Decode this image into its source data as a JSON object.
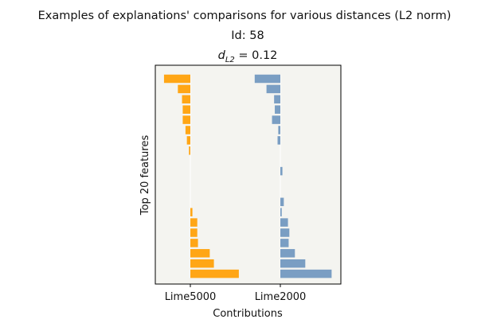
{
  "chart_data": {
    "type": "bar",
    "orientation": "horizontal",
    "title_lines": {
      "main": "Examples of explanations' comparisons for various distances (L2 norm)",
      "id_line": "Id: 58",
      "distance_symbol": "d",
      "distance_subscript": "L2",
      "distance_value": " = 0.12"
    },
    "xlabel": "Contributions",
    "ylabel": "Top 20 features",
    "background": "#f4f4f0",
    "grid": false,
    "legend": "none",
    "x_tick_labels": [
      "Lime5000",
      "Lime2000"
    ],
    "feature_count": 20,
    "series": [
      {
        "name": "Lime5000",
        "color": "#ffa616",
        "values": [
          -0.38,
          -0.18,
          -0.12,
          -0.11,
          -0.11,
          -0.07,
          -0.05,
          -0.02,
          0,
          0,
          0,
          0,
          0,
          0.03,
          0.1,
          0.1,
          0.11,
          0.28,
          0.34,
          0.7
        ]
      },
      {
        "name": "Lime2000",
        "color": "#7a9ec3",
        "values": [
          -0.37,
          -0.2,
          -0.09,
          -0.08,
          -0.12,
          -0.03,
          -0.04,
          0,
          0,
          0.03,
          0,
          0,
          0.05,
          0.02,
          0.11,
          0.13,
          0.12,
          0.21,
          0.36,
          0.74
        ]
      }
    ]
  }
}
